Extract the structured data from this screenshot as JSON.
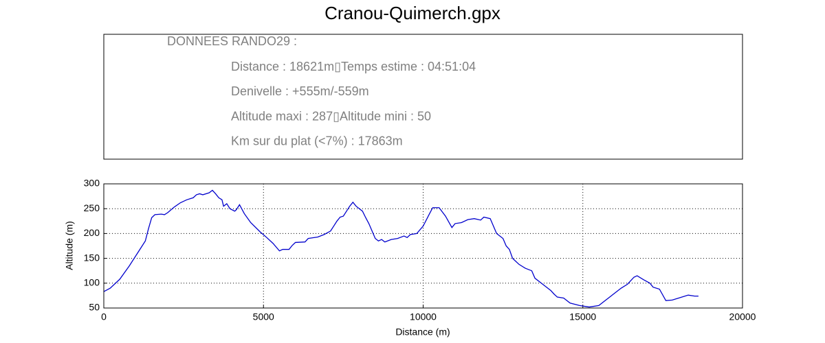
{
  "chart_data": {
    "type": "line",
    "title": "Cranou-Quimerch.gpx",
    "annotations": [
      "DONNEES RANDO29  :",
      "Distance : 18621m▯Temps estime : 04:51:04",
      "Denivelle : +555m/-559m",
      "Altitude maxi : 287▯Altitude mini : 50",
      "Km sur du plat (<7%) : 17863m"
    ],
    "xlabel": "Distance (m)",
    "ylabel": "Altitude (m)",
    "x": [
      0,
      200,
      500,
      800,
      1100,
      1200,
      1300,
      1400,
      1500,
      1600,
      1800,
      1900,
      2000,
      2200,
      2400,
      2600,
      2800,
      2900,
      3000,
      3100,
      3300,
      3400,
      3500,
      3600,
      3700,
      3750,
      3850,
      3950,
      4100,
      4150,
      4250,
      4400,
      4600,
      4900,
      5100,
      5300,
      5500,
      5600,
      5800,
      5900,
      6000,
      6300,
      6400,
      6700,
      6900,
      7100,
      7200,
      7300,
      7400,
      7500,
      7700,
      7800,
      7900,
      8100,
      8200,
      8300,
      8400,
      8500,
      8600,
      8700,
      8800,
      9000,
      9200,
      9400,
      9500,
      9600,
      9800,
      10000,
      10200,
      10300,
      10500,
      10700,
      10900,
      11000,
      11200,
      11400,
      11600,
      11800,
      11900,
      12100,
      12300,
      12500,
      12600,
      12700,
      12800,
      13000,
      13200,
      13400,
      13500,
      13800,
      14000,
      14100,
      14200,
      14400,
      14600,
      14900,
      15200,
      15500,
      15700,
      16000,
      16200,
      16400,
      16600,
      16700,
      16900,
      17100,
      17200,
      17400,
      17600,
      17800,
      18000,
      18300,
      18500,
      18621
    ],
    "series": [
      {
        "name": "Altitude",
        "color": "#0000cc",
        "values": [
          83,
          90,
          108,
          135,
          165,
          175,
          185,
          210,
          232,
          238,
          239,
          238,
          242,
          253,
          262,
          268,
          272,
          278,
          280,
          278,
          282,
          287,
          280,
          272,
          268,
          255,
          260,
          250,
          245,
          248,
          258,
          240,
          222,
          203,
          192,
          180,
          165,
          168,
          168,
          176,
          182,
          183,
          190,
          193,
          198,
          205,
          215,
          225,
          233,
          235,
          255,
          263,
          255,
          245,
          232,
          220,
          205,
          190,
          185,
          188,
          183,
          188,
          190,
          195,
          192,
          198,
          200,
          215,
          240,
          252,
          252,
          235,
          212,
          220,
          222,
          228,
          230,
          227,
          233,
          230,
          200,
          190,
          175,
          168,
          150,
          138,
          130,
          125,
          110,
          95,
          85,
          78,
          72,
          70,
          60,
          55,
          52,
          55,
          65,
          80,
          90,
          98,
          112,
          115,
          107,
          100,
          92,
          88,
          65,
          66,
          70,
          76,
          74,
          74
        ]
      }
    ],
    "xlim": [
      0,
      20000
    ],
    "xticks": [
      0,
      5000,
      10000,
      15000,
      20000
    ],
    "ylim": [
      50,
      300
    ],
    "yticks": [
      50,
      100,
      150,
      200,
      250,
      300
    ],
    "grid": true
  }
}
